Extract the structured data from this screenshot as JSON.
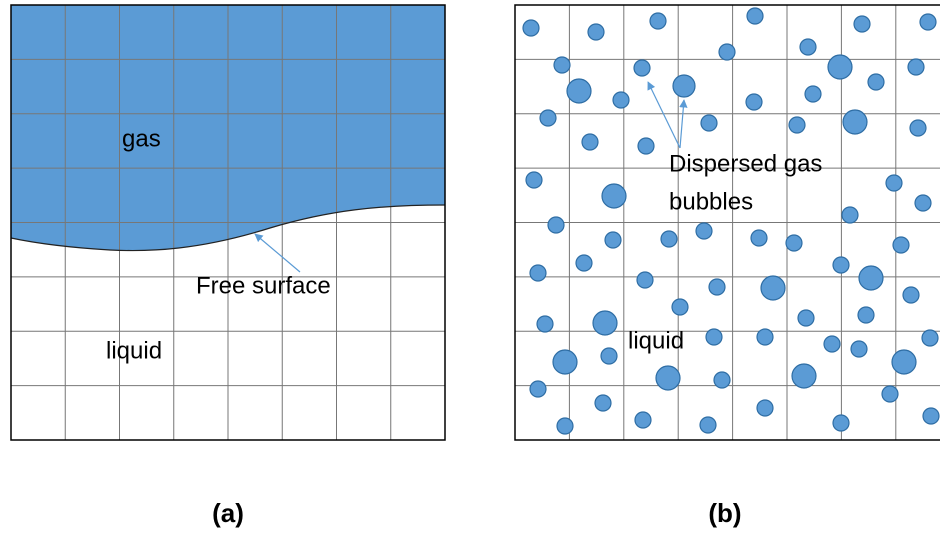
{
  "panels": [
    {
      "label": "(a)",
      "gas": "gas",
      "surface": "Free surface",
      "liquid": "liquid"
    },
    {
      "label": "(b)",
      "bubbles": [
        "Dispersed gas",
        "bubbles"
      ],
      "liquid": "liquid"
    }
  ]
}
